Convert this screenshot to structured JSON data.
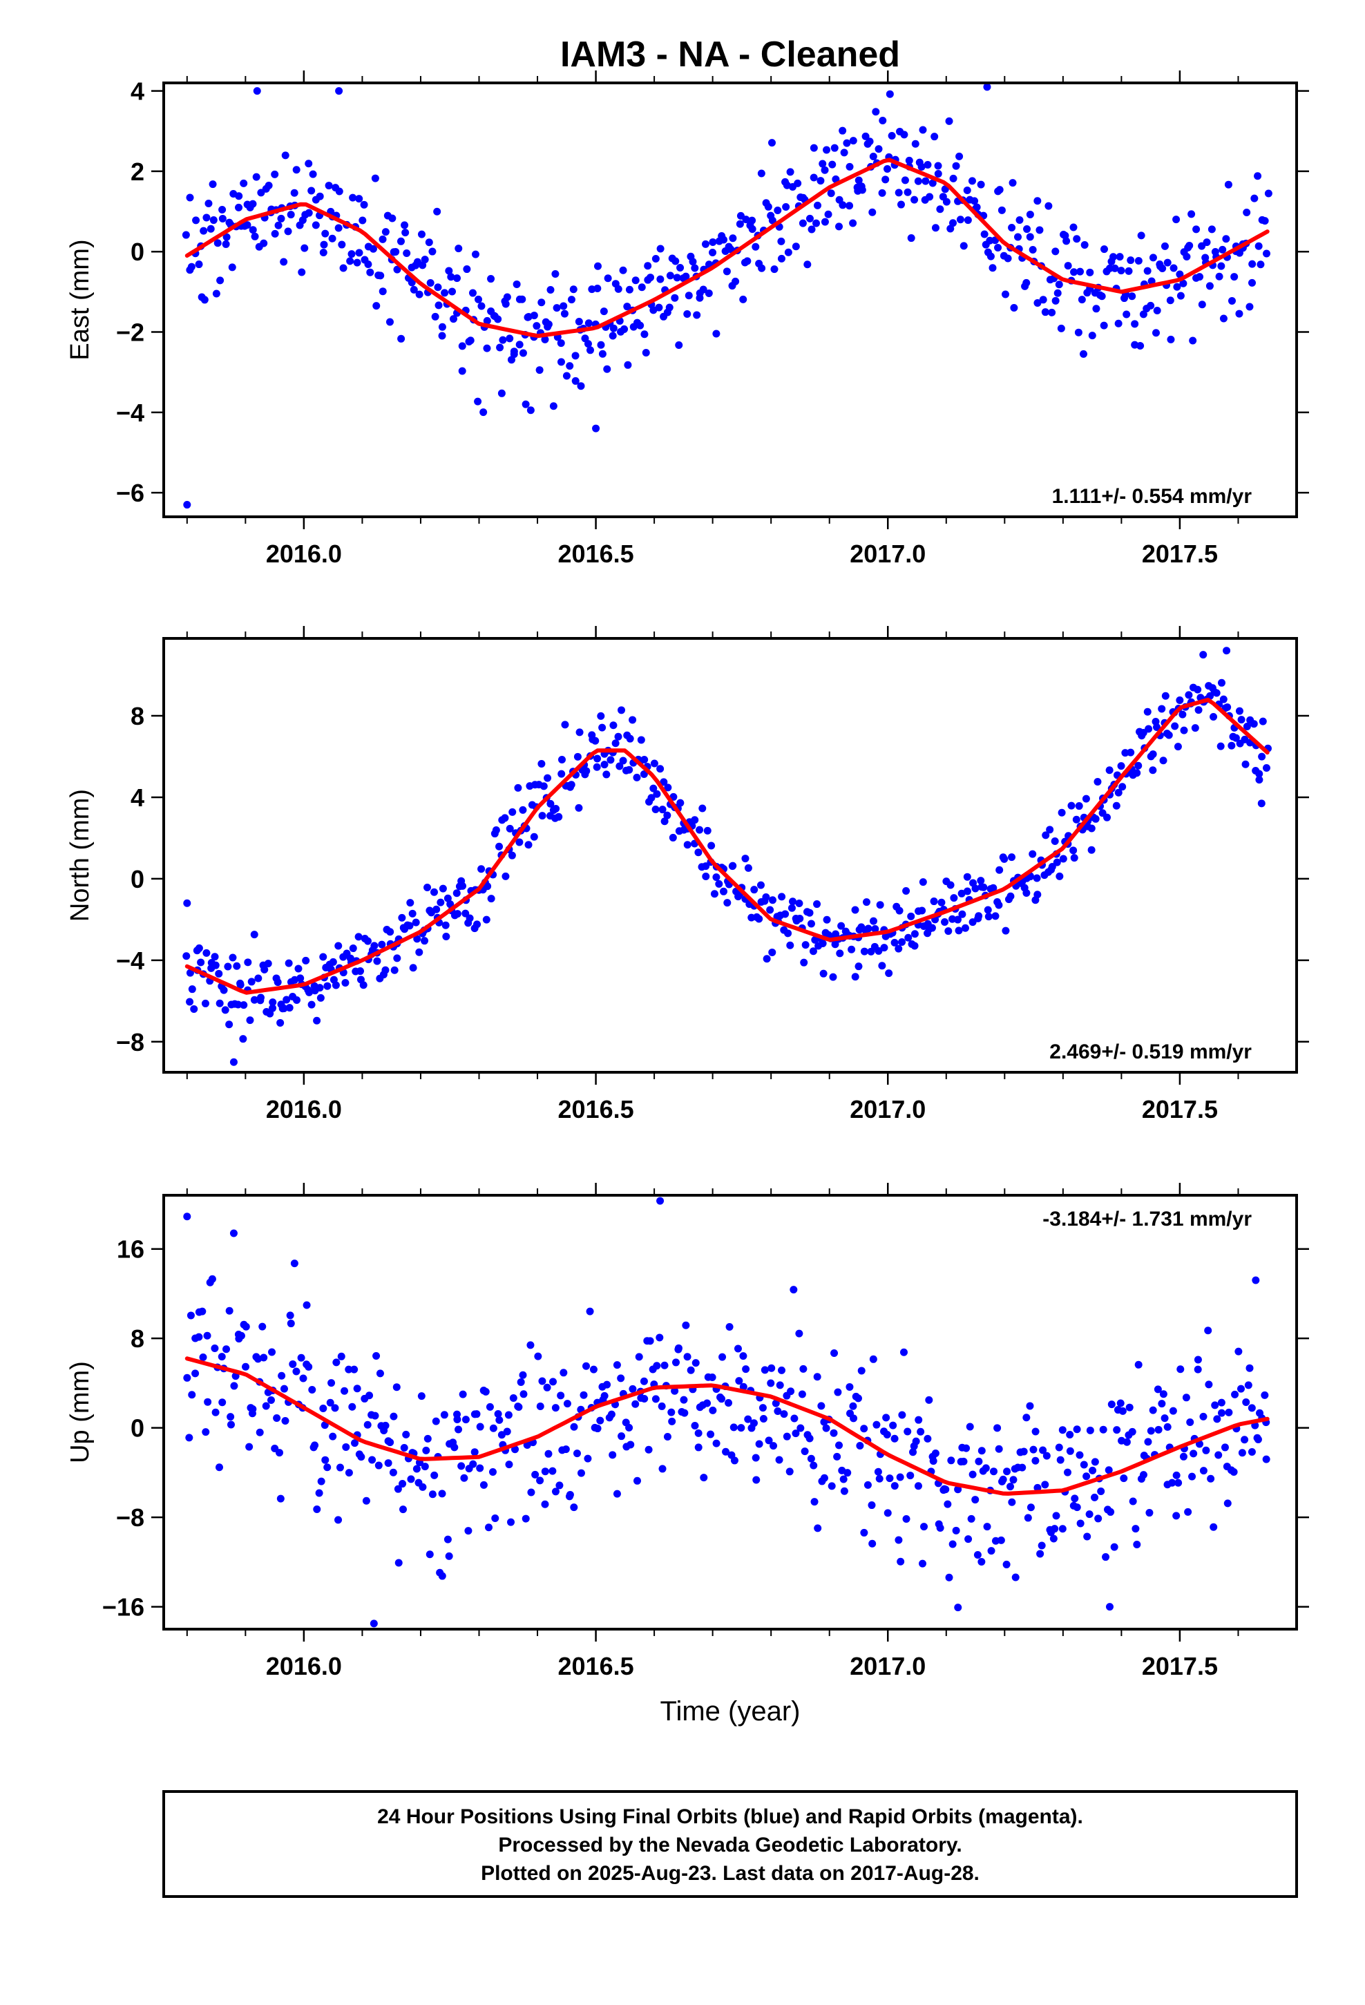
{
  "title": "IAM3  - NA - Cleaned",
  "xlabel": "Time (year)",
  "footer": {
    "line1": "24 Hour Positions Using Final Orbits (blue) and Rapid Orbits (magenta).",
    "line2": "Processed by the Nevada Geodetic Laboratory.",
    "line3": "Plotted on 2025-Aug-23. Last data on 2017-Aug-28."
  },
  "colors": {
    "points": "#0000ff",
    "fit": "#ff0000",
    "frame": "#000000"
  },
  "chart_data": [
    {
      "type": "scatter",
      "name": "east",
      "ylabel": "East (mm)",
      "xlim": [
        2015.76,
        2017.7
      ],
      "ylim": [
        -6.6,
        4.2
      ],
      "xticks": [
        2016.0,
        2016.5,
        2017.0,
        2017.5
      ],
      "xtick_labels": [
        "2016.0",
        "2016.5",
        "2017.0",
        "2017.5"
      ],
      "yticks": [
        -6,
        -4,
        -2,
        0,
        2,
        4
      ],
      "ytick_labels": [
        "−6",
        "−4",
        "−2",
        "0",
        "2",
        "4"
      ],
      "rate_label": "1.111+/- 0.554 mm/yr",
      "rate_position": "bottom-right",
      "fit": {
        "x": [
          2015.8,
          2015.9,
          2016.0,
          2016.1,
          2016.2,
          2016.3,
          2016.4,
          2016.5,
          2016.6,
          2016.7,
          2016.8,
          2016.9,
          2017.0,
          2017.1,
          2017.2,
          2017.3,
          2017.4,
          2017.5,
          2017.6,
          2017.65
        ],
        "y": [
          -0.1,
          0.8,
          1.2,
          0.5,
          -0.8,
          -1.8,
          -2.1,
          -1.9,
          -1.2,
          -0.4,
          0.6,
          1.6,
          2.3,
          1.7,
          0.2,
          -0.7,
          -1.0,
          -0.7,
          0.1,
          0.5
        ]
      },
      "points": {
        "x_start": 2015.8,
        "x_end": 2017.65,
        "count": 600,
        "noise": 0.75,
        "outliers": [
          [
            2015.8,
            -6.3
          ],
          [
            2015.92,
            4.0
          ],
          [
            2016.06,
            4.0
          ],
          [
            2017.17,
            4.1
          ],
          [
            2016.5,
            -4.4
          ],
          [
            2016.38,
            -3.8
          ]
        ]
      }
    },
    {
      "type": "scatter",
      "name": "north",
      "ylabel": "North (mm)",
      "xlim": [
        2015.76,
        2017.7
      ],
      "ylim": [
        -9.5,
        11.8
      ],
      "xticks": [
        2016.0,
        2016.5,
        2017.0,
        2017.5
      ],
      "xtick_labels": [
        "2016.0",
        "2016.5",
        "2017.0",
        "2017.5"
      ],
      "yticks": [
        -8,
        -4,
        0,
        4,
        8
      ],
      "ytick_labels": [
        "−8",
        "−4",
        "0",
        "4",
        "8"
      ],
      "rate_label": "2.469+/- 0.519 mm/yr",
      "rate_position": "bottom-right",
      "fit": {
        "x": [
          2015.8,
          2015.9,
          2016.0,
          2016.1,
          2016.2,
          2016.3,
          2016.4,
          2016.5,
          2016.55,
          2016.6,
          2016.7,
          2016.8,
          2016.9,
          2017.0,
          2017.1,
          2017.2,
          2017.3,
          2017.4,
          2017.5,
          2017.55,
          2017.65
        ],
        "y": [
          -4.3,
          -5.6,
          -5.2,
          -4.0,
          -2.6,
          -0.5,
          3.5,
          6.3,
          6.3,
          5.0,
          0.8,
          -2.0,
          -3.0,
          -2.6,
          -1.6,
          -0.5,
          1.5,
          5.0,
          8.4,
          8.8,
          6.2
        ]
      },
      "points": {
        "x_start": 2015.8,
        "x_end": 2017.65,
        "count": 600,
        "noise": 0.9,
        "outliers": [
          [
            2015.8,
            -1.2
          ],
          [
            2015.88,
            -9.0
          ],
          [
            2017.54,
            11.0
          ],
          [
            2017.58,
            11.2
          ],
          [
            2016.95,
            -4.3
          ],
          [
            2017.64,
            3.7
          ]
        ]
      }
    },
    {
      "type": "scatter",
      "name": "up",
      "ylabel": "Up (mm)",
      "xlim": [
        2015.76,
        2017.7
      ],
      "ylim": [
        -18.0,
        20.8
      ],
      "xticks": [
        2016.0,
        2016.5,
        2017.0,
        2017.5
      ],
      "xtick_labels": [
        "2016.0",
        "2016.5",
        "2017.0",
        "2017.5"
      ],
      "yticks": [
        -16,
        -8,
        0,
        8,
        16
      ],
      "ytick_labels": [
        "−16",
        "−8",
        "0",
        "8",
        "16"
      ],
      "rate_label": "-3.184+/- 1.731 mm/yr",
      "rate_position": "top-right",
      "fit": {
        "x": [
          2015.8,
          2015.9,
          2016.0,
          2016.1,
          2016.2,
          2016.3,
          2016.4,
          2016.5,
          2016.6,
          2016.7,
          2016.8,
          2016.9,
          2017.0,
          2017.1,
          2017.2,
          2017.3,
          2017.4,
          2017.5,
          2017.6,
          2017.65
        ],
        "y": [
          6.2,
          4.8,
          1.8,
          -1.2,
          -2.8,
          -2.6,
          -0.8,
          1.9,
          3.6,
          3.8,
          2.8,
          0.8,
          -2.4,
          -4.9,
          -5.9,
          -5.6,
          -3.9,
          -1.7,
          0.3,
          0.8
        ]
      },
      "points": {
        "x_start": 2015.8,
        "x_end": 2017.65,
        "count": 600,
        "noise": 4.0,
        "outliers": [
          [
            2015.8,
            18.9
          ],
          [
            2015.88,
            17.4
          ],
          [
            2016.61,
            20.3
          ],
          [
            2016.12,
            -17.5
          ],
          [
            2017.38,
            -16.0
          ],
          [
            2017.63,
            13.2
          ]
        ]
      }
    }
  ]
}
